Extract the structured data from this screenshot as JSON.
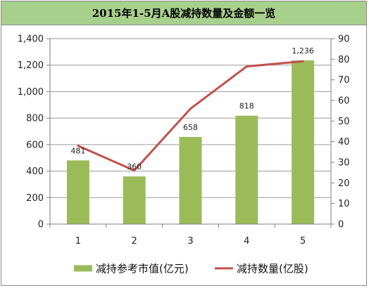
{
  "chart_data": {
    "type": "bar",
    "title": "2015年1-5月A股减持数量及金额一览",
    "categories": [
      "1",
      "2",
      "3",
      "4",
      "5"
    ],
    "series": [
      {
        "name": "减持参考市值(亿元)",
        "type": "bar",
        "axis": "left",
        "color": "#9bbb59",
        "values": [
          481,
          360,
          658,
          818,
          1236
        ],
        "labels": [
          "481",
          "360",
          "658",
          "818",
          "1,236"
        ]
      },
      {
        "name": "减持数量(亿股)",
        "type": "line",
        "axis": "right",
        "color": "#c0504d",
        "values": [
          38,
          26,
          56,
          76.5,
          79
        ]
      }
    ],
    "y_left": {
      "lim": [
        0,
        1400
      ],
      "ticks": [
        "0",
        "200",
        "400",
        "600",
        "800",
        "1,000",
        "1,200",
        "1,400"
      ]
    },
    "y_right": {
      "lim": [
        0,
        90
      ],
      "ticks": [
        "0",
        "10",
        "20",
        "30",
        "40",
        "50",
        "60",
        "70",
        "80",
        "90"
      ]
    },
    "grid": true,
    "legend": "bottom"
  }
}
